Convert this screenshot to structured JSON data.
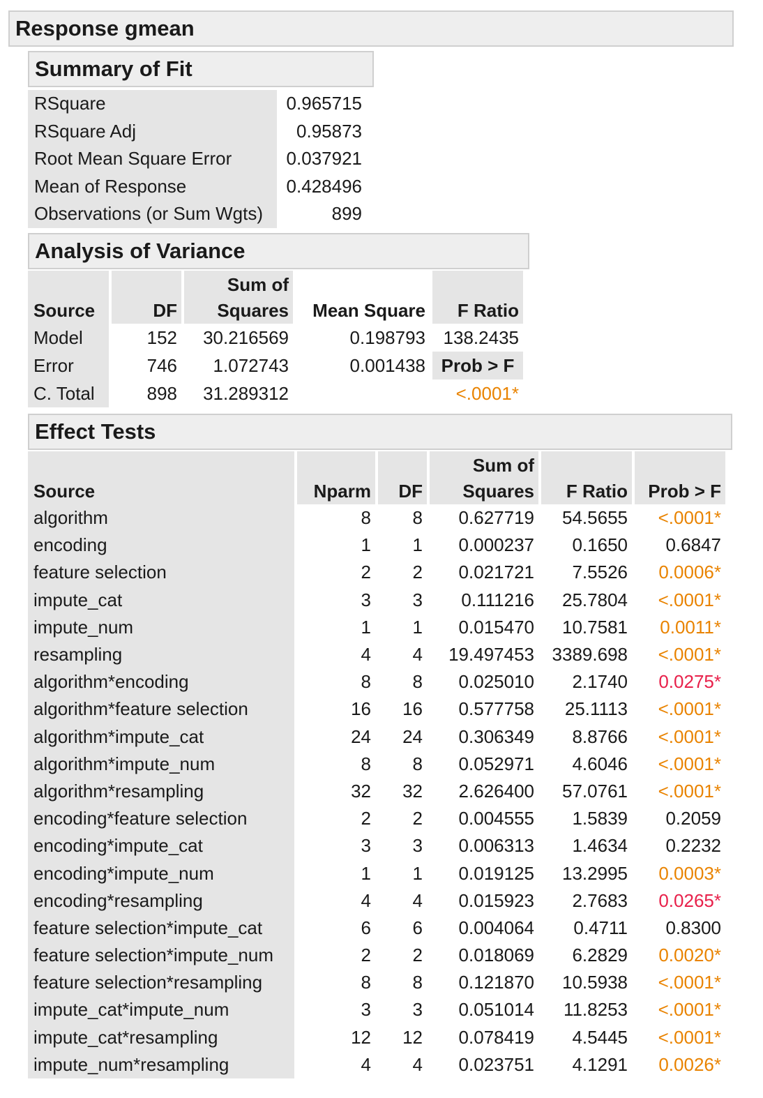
{
  "response_title": "Response gmean",
  "summary_of_fit": {
    "title": "Summary of Fit",
    "rows": [
      {
        "label": "RSquare",
        "value": "0.965715"
      },
      {
        "label": "RSquare Adj",
        "value": "0.95873"
      },
      {
        "label": "Root Mean Square Error",
        "value": "0.037921"
      },
      {
        "label": "Mean of Response",
        "value": "0.428496"
      },
      {
        "label": "Observations (or Sum Wgts)",
        "value": "899"
      }
    ]
  },
  "anova": {
    "title": "Analysis of Variance",
    "headers": {
      "source": "Source",
      "df": "DF",
      "ss_top": "Sum of",
      "ss_bottom": "Squares",
      "ms": "Mean Square",
      "f": "F Ratio"
    },
    "rows": [
      {
        "source": "Model",
        "df": "152",
        "ss": "30.216569",
        "ms": "0.198793",
        "f": "138.2435"
      },
      {
        "source": "Error",
        "df": "746",
        "ss": "1.072743",
        "ms": "0.001438",
        "f": "Prob > F"
      },
      {
        "source": "C. Total",
        "df": "898",
        "ss": "31.289312",
        "ms": "",
        "f": "<.0001*"
      }
    ],
    "prob_color": "#e98300"
  },
  "effect_tests": {
    "title": "Effect Tests",
    "headers": {
      "source": "Source",
      "nparm": "Nparm",
      "df": "DF",
      "ss_top": "Sum of",
      "ss_bottom": "Squares",
      "f": "F Ratio",
      "prob": "Prob > F"
    },
    "rows": [
      {
        "source": "algorithm",
        "nparm": "8",
        "df": "8",
        "ss": "0.627719",
        "f": "54.5655",
        "prob": "<.0001*",
        "sig": "orange"
      },
      {
        "source": "encoding",
        "nparm": "1",
        "df": "1",
        "ss": "0.000237",
        "f": "0.1650",
        "prob": "0.6847",
        "sig": "none"
      },
      {
        "source": "feature selection",
        "nparm": "2",
        "df": "2",
        "ss": "0.021721",
        "f": "7.5526",
        "prob": "0.0006*",
        "sig": "orange"
      },
      {
        "source": "impute_cat",
        "nparm": "3",
        "df": "3",
        "ss": "0.111216",
        "f": "25.7804",
        "prob": "<.0001*",
        "sig": "orange"
      },
      {
        "source": "impute_num",
        "nparm": "1",
        "df": "1",
        "ss": "0.015470",
        "f": "10.7581",
        "prob": "0.0011*",
        "sig": "orange"
      },
      {
        "source": "resampling",
        "nparm": "4",
        "df": "4",
        "ss": "19.497453",
        "f": "3389.698",
        "prob": "<.0001*",
        "sig": "orange"
      },
      {
        "source": "algorithm*encoding",
        "nparm": "8",
        "df": "8",
        "ss": "0.025010",
        "f": "2.1740",
        "prob": "0.0275*",
        "sig": "red"
      },
      {
        "source": "algorithm*feature selection",
        "nparm": "16",
        "df": "16",
        "ss": "0.577758",
        "f": "25.1113",
        "prob": "<.0001*",
        "sig": "orange"
      },
      {
        "source": "algorithm*impute_cat",
        "nparm": "24",
        "df": "24",
        "ss": "0.306349",
        "f": "8.8766",
        "prob": "<.0001*",
        "sig": "orange"
      },
      {
        "source": "algorithm*impute_num",
        "nparm": "8",
        "df": "8",
        "ss": "0.052971",
        "f": "4.6046",
        "prob": "<.0001*",
        "sig": "orange"
      },
      {
        "source": "algorithm*resampling",
        "nparm": "32",
        "df": "32",
        "ss": "2.626400",
        "f": "57.0761",
        "prob": "<.0001*",
        "sig": "orange"
      },
      {
        "source": "encoding*feature selection",
        "nparm": "2",
        "df": "2",
        "ss": "0.004555",
        "f": "1.5839",
        "prob": "0.2059",
        "sig": "none"
      },
      {
        "source": "encoding*impute_cat",
        "nparm": "3",
        "df": "3",
        "ss": "0.006313",
        "f": "1.4634",
        "prob": "0.2232",
        "sig": "none"
      },
      {
        "source": "encoding*impute_num",
        "nparm": "1",
        "df": "1",
        "ss": "0.019125",
        "f": "13.2995",
        "prob": "0.0003*",
        "sig": "orange"
      },
      {
        "source": "encoding*resampling",
        "nparm": "4",
        "df": "4",
        "ss": "0.015923",
        "f": "2.7683",
        "prob": "0.0265*",
        "sig": "red"
      },
      {
        "source": "feature selection*impute_cat",
        "nparm": "6",
        "df": "6",
        "ss": "0.004064",
        "f": "0.4711",
        "prob": "0.8300",
        "sig": "none"
      },
      {
        "source": "feature selection*impute_num",
        "nparm": "2",
        "df": "2",
        "ss": "0.018069",
        "f": "6.2829",
        "prob": "0.0020*",
        "sig": "orange"
      },
      {
        "source": "feature selection*resampling",
        "nparm": "8",
        "df": "8",
        "ss": "0.121870",
        "f": "10.5938",
        "prob": "<.0001*",
        "sig": "orange"
      },
      {
        "source": "impute_cat*impute_num",
        "nparm": "3",
        "df": "3",
        "ss": "0.051014",
        "f": "11.8253",
        "prob": "<.0001*",
        "sig": "orange"
      },
      {
        "source": "impute_cat*resampling",
        "nparm": "12",
        "df": "12",
        "ss": "0.078419",
        "f": "4.5445",
        "prob": "<.0001*",
        "sig": "orange"
      },
      {
        "source": "impute_num*resampling",
        "nparm": "4",
        "df": "4",
        "ss": "0.023751",
        "f": "4.1291",
        "prob": "0.0026*",
        "sig": "orange"
      }
    ],
    "colors": {
      "orange": "#e98300",
      "red": "#e8204a",
      "none": "#1a1a1a"
    }
  }
}
